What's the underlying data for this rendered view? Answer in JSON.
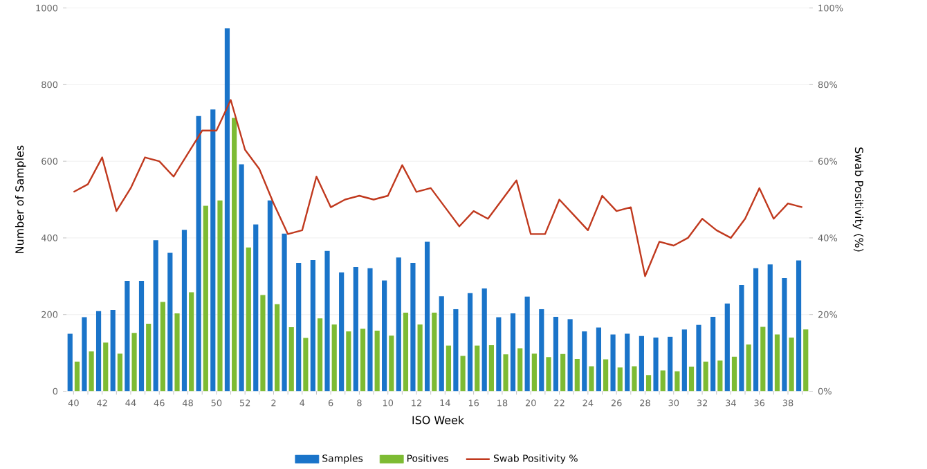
{
  "chart_data": {
    "type": "bar",
    "xlabel": "ISO Week",
    "ylabel": "Number of Samples",
    "y2label": "Swab Positivity (%)",
    "categories": [
      "40",
      null,
      "42",
      null,
      "44",
      null,
      "46",
      null,
      "48",
      null,
      "50",
      null,
      "52",
      null,
      "2",
      null,
      "4",
      null,
      "6",
      null,
      "8",
      null,
      "10",
      null,
      "12",
      null,
      "14",
      null,
      "16",
      null,
      "18",
      null,
      "20",
      null,
      "22",
      null,
      "24",
      null,
      "26",
      null,
      "28",
      null,
      "30",
      null,
      "32",
      null,
      "34",
      null,
      "36",
      null,
      "38",
      null
    ],
    "series": [
      {
        "name": "Samples",
        "color": "#1a74c9",
        "values": [
          150,
          193,
          209,
          212,
          288,
          288,
          394,
          361,
          421,
          718,
          735,
          947,
          592,
          435,
          498,
          411,
          335,
          342,
          366,
          310,
          324,
          321,
          289,
          349,
          335,
          390,
          248,
          214,
          256,
          268,
          193,
          203,
          247,
          214,
          194,
          188,
          156,
          166,
          148,
          150,
          144,
          140,
          142,
          161,
          173,
          194,
          229,
          277,
          321,
          331,
          295,
          341
        ]
      },
      {
        "name": "Positives",
        "color": "#7dbb33",
        "values": [
          77,
          104,
          127,
          98,
          152,
          176,
          233,
          203,
          258,
          484,
          498,
          713,
          375,
          251,
          227,
          167,
          139,
          190,
          174,
          156,
          163,
          158,
          145,
          205,
          174,
          205,
          119,
          92,
          119,
          120,
          96,
          112,
          98,
          89,
          97,
          84,
          65,
          83,
          62,
          65,
          42,
          54,
          52,
          64,
          77,
          80,
          90,
          122,
          168,
          148,
          140,
          161
        ]
      },
      {
        "name": "Swab Positivity %",
        "type": "line",
        "axis": "y2",
        "color": "#c0391e",
        "values": [
          52,
          54,
          61,
          47,
          53,
          61,
          60,
          56,
          62,
          68,
          68,
          76,
          63,
          58,
          49,
          41,
          42,
          56,
          48,
          50,
          51,
          50,
          51,
          59,
          52,
          53,
          48,
          43,
          47,
          45,
          50,
          55,
          41,
          41,
          50,
          46,
          42,
          51,
          47,
          48,
          30,
          39,
          38,
          40,
          45,
          42,
          40,
          45,
          53,
          45,
          49,
          48
        ]
      }
    ],
    "ylim": [
      0,
      1000
    ],
    "yticks": [
      0,
      200,
      400,
      600,
      800,
      1000
    ],
    "y2lim": [
      0,
      100
    ],
    "y2ticks": [
      {
        "value": 0,
        "label": "0%"
      },
      {
        "value": 20,
        "label": "20%"
      },
      {
        "value": 40,
        "label": "40%"
      },
      {
        "value": 60,
        "label": "60%"
      },
      {
        "value": 80,
        "label": "80%"
      },
      {
        "value": 100,
        "label": "100%"
      }
    ],
    "grid": "y",
    "legend": "bottom",
    "marker": "none",
    "line_style": "solid"
  }
}
